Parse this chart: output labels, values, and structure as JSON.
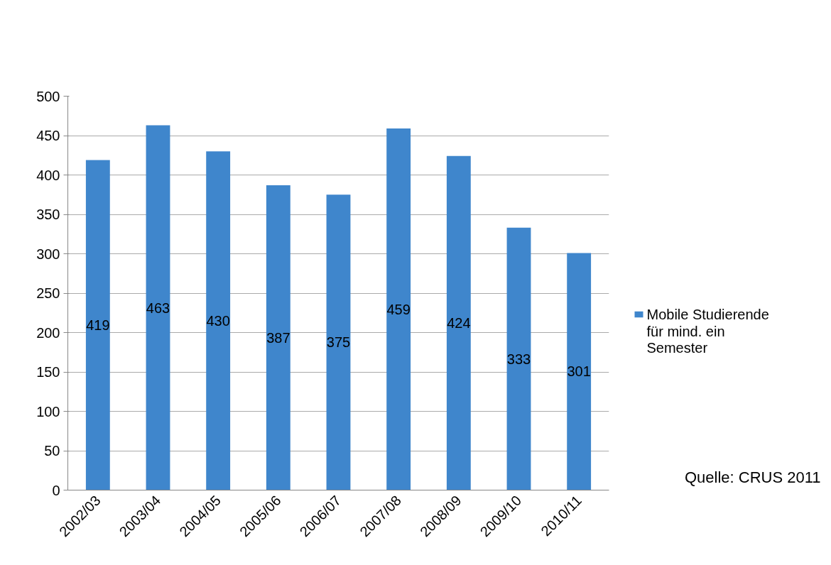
{
  "chart_data": {
    "type": "bar",
    "categories": [
      "2002/03",
      "2003/04",
      "2004/05",
      "2005/06",
      "2006/07",
      "2007/08",
      "2008/09",
      "2009/10",
      "2010/11"
    ],
    "series": [
      {
        "name": "Mobile Studierende für mind. ein Semester",
        "color": "#3f86cc",
        "values": [
          419,
          463,
          430,
          387,
          375,
          459,
          424,
          333,
          301
        ]
      }
    ],
    "ylim": [
      0,
      500
    ],
    "yticks": [
      0,
      50,
      100,
      150,
      200,
      250,
      300,
      350,
      400,
      450,
      500
    ],
    "grid": "y",
    "legend": "right",
    "data_labels": true,
    "annotations": [
      "Quelle: CRUS 2011"
    ]
  }
}
